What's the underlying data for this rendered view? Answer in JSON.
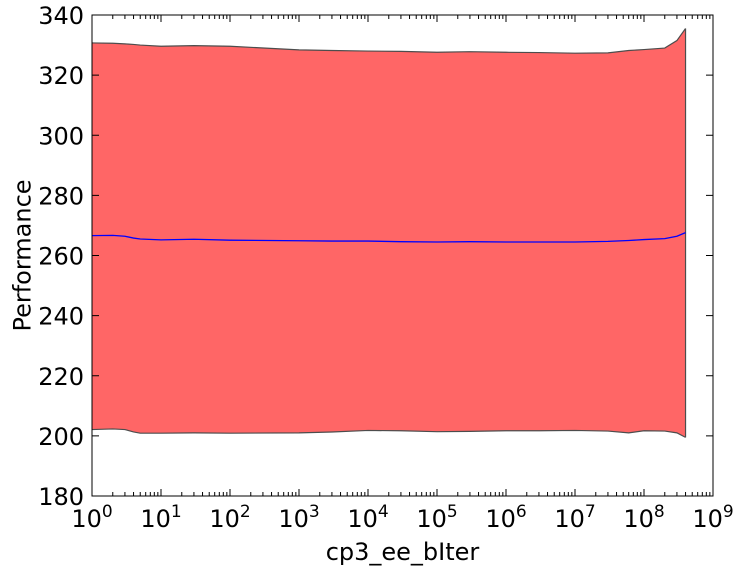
{
  "chart_data": {
    "type": "area",
    "title": "",
    "xlabel": "cp3_ee_bIter",
    "ylabel": "Performance",
    "xscale": "log",
    "xlim": [
      1,
      1000000000
    ],
    "ylim": [
      180,
      340
    ],
    "grid": false,
    "x_ticks": [
      {
        "value": 1,
        "base": "10",
        "exp": "0"
      },
      {
        "value": 10,
        "base": "10",
        "exp": "1"
      },
      {
        "value": 100,
        "base": "10",
        "exp": "2"
      },
      {
        "value": 1000,
        "base": "10",
        "exp": "3"
      },
      {
        "value": 10000,
        "base": "10",
        "exp": "4"
      },
      {
        "value": 100000,
        "base": "10",
        "exp": "5"
      },
      {
        "value": 1000000,
        "base": "10",
        "exp": "6"
      },
      {
        "value": 10000000,
        "base": "10",
        "exp": "7"
      },
      {
        "value": 100000000,
        "base": "10",
        "exp": "8"
      },
      {
        "value": 1000000000,
        "base": "10",
        "exp": "9"
      }
    ],
    "y_ticks": [
      "180",
      "200",
      "220",
      "240",
      "260",
      "280",
      "300",
      "320",
      "340"
    ],
    "x": [
      1,
      2,
      3,
      4,
      5,
      10,
      30,
      100,
      1000,
      3000,
      10000,
      30000,
      100000,
      300000,
      1000000,
      3000000,
      10000000,
      30000000,
      60000000,
      100000000,
      200000000,
      300000000,
      400000000
    ],
    "series": [
      {
        "role": "band-upper",
        "color": "#ff6666",
        "values": [
          330.7,
          330.6,
          330.4,
          330.2,
          330.0,
          329.6,
          329.8,
          329.6,
          328.4,
          328.2,
          328.0,
          327.9,
          327.6,
          327.8,
          327.6,
          327.5,
          327.3,
          327.4,
          328.2,
          328.5,
          329.0,
          331.5,
          335.5
        ]
      },
      {
        "role": "band-lower",
        "color": "#ff6666",
        "values": [
          202.1,
          202.3,
          202.1,
          201.3,
          200.9,
          200.9,
          201.0,
          200.9,
          201.0,
          201.3,
          201.8,
          201.7,
          201.4,
          201.5,
          201.7,
          201.7,
          201.8,
          201.6,
          201.0,
          201.7,
          201.6,
          201.0,
          199.5
        ]
      },
      {
        "role": "mean",
        "color": "#0000ff",
        "values": [
          266.6,
          266.7,
          266.4,
          265.8,
          265.5,
          265.2,
          265.4,
          265.1,
          264.9,
          264.8,
          264.8,
          264.6,
          264.5,
          264.6,
          264.5,
          264.5,
          264.5,
          264.7,
          265.0,
          265.3,
          265.6,
          266.4,
          267.6
        ]
      }
    ]
  }
}
